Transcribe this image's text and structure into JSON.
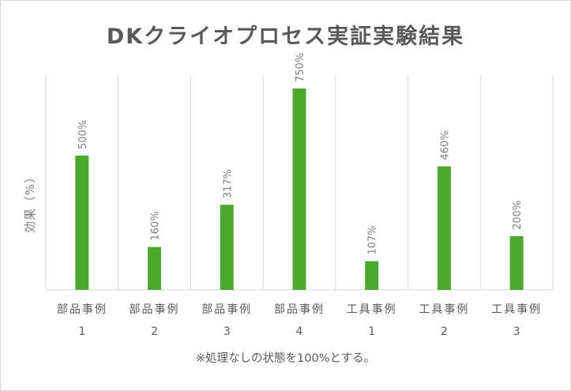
{
  "chart_data": {
    "type": "bar",
    "title": "DKクライオプロセス実証実験結果",
    "ylabel": "効果（%）",
    "xlabel": "",
    "categories": [
      [
        "部品事例",
        "1"
      ],
      [
        "部品事例",
        "2"
      ],
      [
        "部品事例",
        "3"
      ],
      [
        "部品事例",
        "4"
      ],
      [
        "工具事例",
        "1"
      ],
      [
        "工具事例",
        "2"
      ],
      [
        "工具事例",
        "3"
      ]
    ],
    "values": [
      500,
      160,
      317,
      750,
      107,
      460,
      200
    ],
    "data_labels": [
      "500%",
      "160%",
      "317%",
      "750%",
      "107%",
      "460%",
      "200%"
    ],
    "ylim": [
      0,
      800
    ],
    "grid": "vertical category separators",
    "legend": "none",
    "bar_color": "#4ea72e",
    "grid_color": "#d9d9d9"
  },
  "footnote": "※処理なしの状態を100%とする。"
}
